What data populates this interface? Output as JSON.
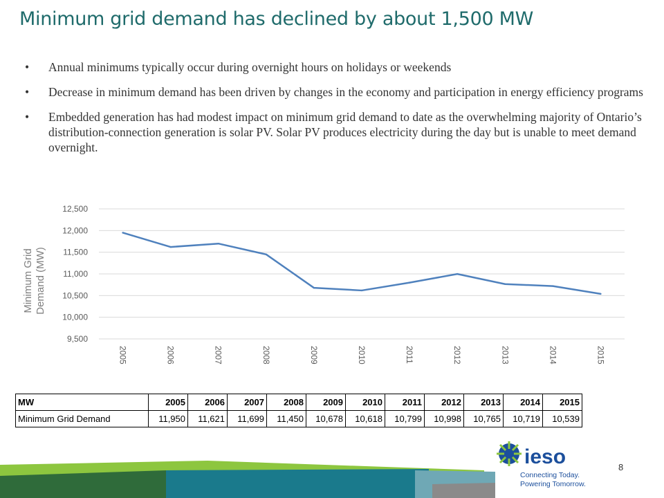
{
  "title": "Minimum grid demand has declined by about 1,500 MW",
  "bullets": [
    "Annual minimums typically occur during overnight hours on holidays or weekends",
    "Decrease in minimum demand has been driven by changes in the economy and participation in energy efficiency programs",
    "Embedded generation has had modest impact on minimum grid demand to date as the overwhelming majority of Ontario’s distribution-connection generation is solar PV. Solar PV produces electricity during the day but is unable to meet demand overnight."
  ],
  "bullet_glyph": "•",
  "chart_data": {
    "type": "line",
    "title": "",
    "xlabel": "",
    "ylabel": "Minimum Grid Demand (MW)",
    "ylim": [
      9500,
      12500
    ],
    "yticks": [
      9500,
      10000,
      10500,
      11000,
      11500,
      12000,
      12500
    ],
    "ytick_labels": [
      "9,500",
      "10,000",
      "10,500",
      "11,000",
      "11,500",
      "12,000",
      "12,500"
    ],
    "categories": [
      "2005",
      "2006",
      "2007",
      "2008",
      "2009",
      "2010",
      "2011",
      "2012",
      "2013",
      "2014",
      "2015"
    ],
    "series": [
      {
        "name": "Minimum Grid Demand",
        "values": [
          11950,
          11621,
          11699,
          11450,
          10678,
          10618,
          10799,
          10998,
          10765,
          10719,
          10539
        ]
      }
    ],
    "grid": true,
    "line_color": "#4f81bd"
  },
  "table": {
    "header": [
      "MW",
      "2005",
      "2006",
      "2007",
      "2008",
      "2009",
      "2010",
      "2011",
      "2012",
      "2013",
      "2014",
      "2015"
    ],
    "rows": [
      [
        "Minimum Grid Demand",
        "11,950",
        "11,621",
        "11,699",
        "11,450",
        "10,678",
        "10,618",
        "10,799",
        "10,998",
        "10,765",
        "10,719",
        "10,539"
      ]
    ]
  },
  "logo": {
    "word": "ieso",
    "tagline_1": "Connecting Today.",
    "tagline_2": "Powering Tomorrow."
  },
  "page_number": "8",
  "colors": {
    "title": "#1f6b6b",
    "line": "#4f81bd",
    "brand_blue": "#1c4f9c",
    "brand_green": "#8dc63f",
    "teal": "#1a7a8c"
  }
}
